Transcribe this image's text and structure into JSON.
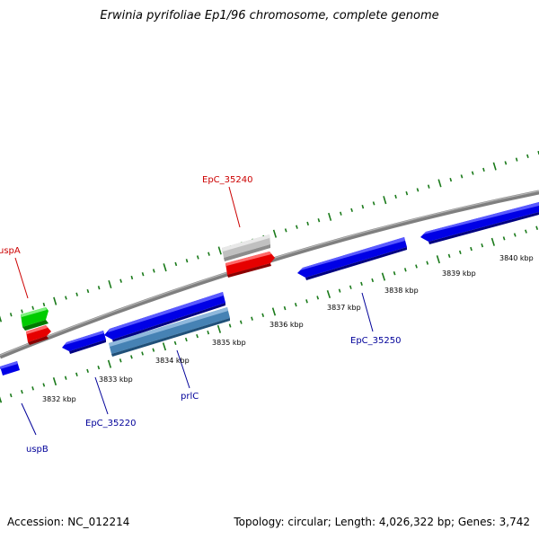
{
  "title": "Erwinia pyrifoliae Ep1/96 chromosome, complete genome",
  "footer": {
    "accession": "Accession: NC_012214",
    "summary": "Topology: circular; Length: 4,026,322 bp; Genes: 3,742"
  },
  "colors": {
    "backbone": "#7f7f7f",
    "tick": "#1a7a1a",
    "forward_cds": "#00cc00",
    "reverse_cds": "#e60000",
    "pseudo_gene": "#c0c0c0",
    "reverse_strand_cds": "#0000e6",
    "highlight_cds": "#4682b4",
    "label_red": "#cc0000",
    "label_blue": "#000099"
  },
  "scale": {
    "tick_labels": [
      "3832 kbp",
      "3833 kbp",
      "3834 kbp",
      "3835 kbp",
      "3836 kbp",
      "3837 kbp",
      "3838 kbp",
      "3839 kbp",
      "3840 kbp"
    ]
  },
  "genes": [
    {
      "name": "uspA",
      "strand": "forward",
      "color_key": "forward_cds"
    },
    {
      "name": "EpC_35240",
      "strand": "forward",
      "color_key": "pseudo_gene"
    },
    {
      "name": "uspB",
      "strand": "reverse",
      "color_key": "reverse_strand_cds"
    },
    {
      "name": "EpC_35220",
      "strand": "reverse",
      "color_key": "reverse_strand_cds"
    },
    {
      "name": "prlC",
      "strand": "reverse",
      "color_key": "highlight_cds"
    },
    {
      "name": "EpC_35250",
      "strand": "reverse",
      "color_key": "reverse_strand_cds"
    }
  ]
}
